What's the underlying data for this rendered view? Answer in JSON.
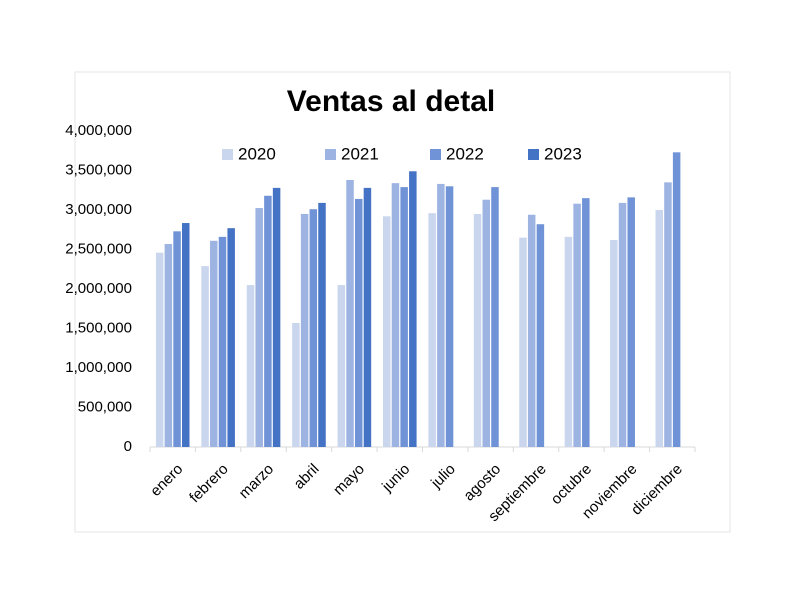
{
  "chart_data": {
    "type": "bar",
    "title": "Ventas al detal",
    "categories": [
      "enero",
      "febrero",
      "marzo",
      "abril",
      "mayo",
      "junio",
      "julio",
      "agosto",
      "septiembre",
      "octubre",
      "noviembre",
      "diciembre"
    ],
    "series": [
      {
        "name": "2020",
        "color": "#c9d6ee",
        "values": [
          2460000,
          2290000,
          2050000,
          1570000,
          2050000,
          2920000,
          2960000,
          2950000,
          2650000,
          2660000,
          2620000,
          3000000
        ]
      },
      {
        "name": "2021",
        "color": "#9db4e2",
        "values": [
          2570000,
          2610000,
          3025000,
          2950000,
          3380000,
          3340000,
          3330000,
          3130000,
          2940000,
          3080000,
          3090000,
          3350000
        ]
      },
      {
        "name": "2022",
        "color": "#6f93d6",
        "values": [
          2730000,
          2660000,
          3180000,
          3010000,
          3140000,
          3290000,
          3300000,
          3290000,
          2820000,
          3150000,
          3160000,
          3730000
        ]
      },
      {
        "name": "2023",
        "color": "#4472c4",
        "values": [
          2835000,
          2770000,
          3280000,
          3090000,
          3280000,
          3490000,
          null,
          null,
          null,
          null,
          null,
          null
        ]
      }
    ],
    "ylim": [
      0,
      4000000
    ],
    "yticks": [
      0,
      {
        "value": 500000,
        "label": "500,000"
      },
      {
        "value": 1000000,
        "label": "1,000,000"
      },
      {
        "value": 1500000,
        "label": "1,500,000"
      },
      {
        "value": 2000000,
        "label": "2,000,000"
      },
      {
        "value": 2500000,
        "label": "2,500,000"
      },
      {
        "value": 3000000,
        "label": "3,000,000"
      },
      {
        "value": 3500000,
        "label": "3,500,000"
      },
      {
        "value": 4000000,
        "label": "4,000,000"
      }
    ],
    "legend": "top"
  }
}
